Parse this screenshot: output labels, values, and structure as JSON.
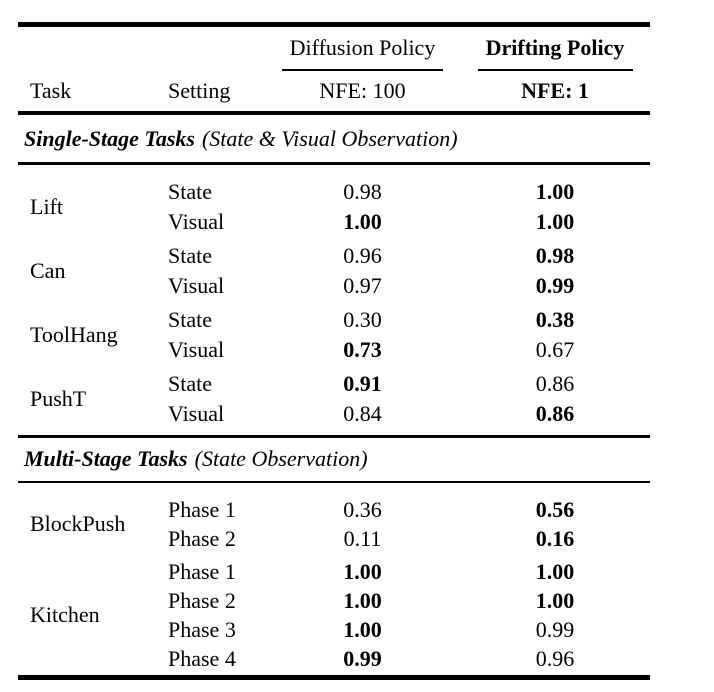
{
  "table": {
    "columns": {
      "task": "Task",
      "setting": "Setting"
    },
    "policies": [
      {
        "name": "Diffusion Policy",
        "nfe": "NFE: 100",
        "bold": false
      },
      {
        "name": "Drifting Policy",
        "nfe": "NFE: 1",
        "bold": true
      }
    ],
    "sections": [
      {
        "title": "Single-Stage Tasks",
        "subtitle": "(State & Visual Observation)",
        "groups": [
          {
            "task": "Lift",
            "rows": [
              {
                "setting": "State",
                "values": [
                  "0.98",
                  "1.00"
                ],
                "bold": [
                  false,
                  true
                ]
              },
              {
                "setting": "Visual",
                "values": [
                  "1.00",
                  "1.00"
                ],
                "bold": [
                  true,
                  true
                ]
              }
            ]
          },
          {
            "task": "Can",
            "rows": [
              {
                "setting": "State",
                "values": [
                  "0.96",
                  "0.98"
                ],
                "bold": [
                  false,
                  true
                ]
              },
              {
                "setting": "Visual",
                "values": [
                  "0.97",
                  "0.99"
                ],
                "bold": [
                  false,
                  true
                ]
              }
            ]
          },
          {
            "task": "ToolHang",
            "rows": [
              {
                "setting": "State",
                "values": [
                  "0.30",
                  "0.38"
                ],
                "bold": [
                  false,
                  true
                ]
              },
              {
                "setting": "Visual",
                "values": [
                  "0.73",
                  "0.67"
                ],
                "bold": [
                  true,
                  false
                ]
              }
            ]
          },
          {
            "task": "PushT",
            "rows": [
              {
                "setting": "State",
                "values": [
                  "0.91",
                  "0.86"
                ],
                "bold": [
                  true,
                  false
                ]
              },
              {
                "setting": "Visual",
                "values": [
                  "0.84",
                  "0.86"
                ],
                "bold": [
                  false,
                  true
                ]
              }
            ]
          }
        ]
      },
      {
        "title": "Multi-Stage Tasks",
        "subtitle": "(State Observation)",
        "groups": [
          {
            "task": "BlockPush",
            "rows": [
              {
                "setting": "Phase 1",
                "values": [
                  "0.36",
                  "0.56"
                ],
                "bold": [
                  false,
                  true
                ]
              },
              {
                "setting": "Phase 2",
                "values": [
                  "0.11",
                  "0.16"
                ],
                "bold": [
                  false,
                  true
                ]
              }
            ]
          },
          {
            "task": "Kitchen",
            "rows": [
              {
                "setting": "Phase 1",
                "values": [
                  "1.00",
                  "1.00"
                ],
                "bold": [
                  true,
                  true
                ]
              },
              {
                "setting": "Phase 2",
                "values": [
                  "1.00",
                  "1.00"
                ],
                "bold": [
                  true,
                  true
                ]
              },
              {
                "setting": "Phase 3",
                "values": [
                  "1.00",
                  "0.99"
                ],
                "bold": [
                  true,
                  false
                ]
              },
              {
                "setting": "Phase 4",
                "values": [
                  "0.99",
                  "0.96"
                ],
                "bold": [
                  true,
                  false
                ]
              }
            ]
          }
        ]
      }
    ]
  },
  "colors": {
    "text": "#000000",
    "background": "#ffffff",
    "rule": "#000000"
  }
}
